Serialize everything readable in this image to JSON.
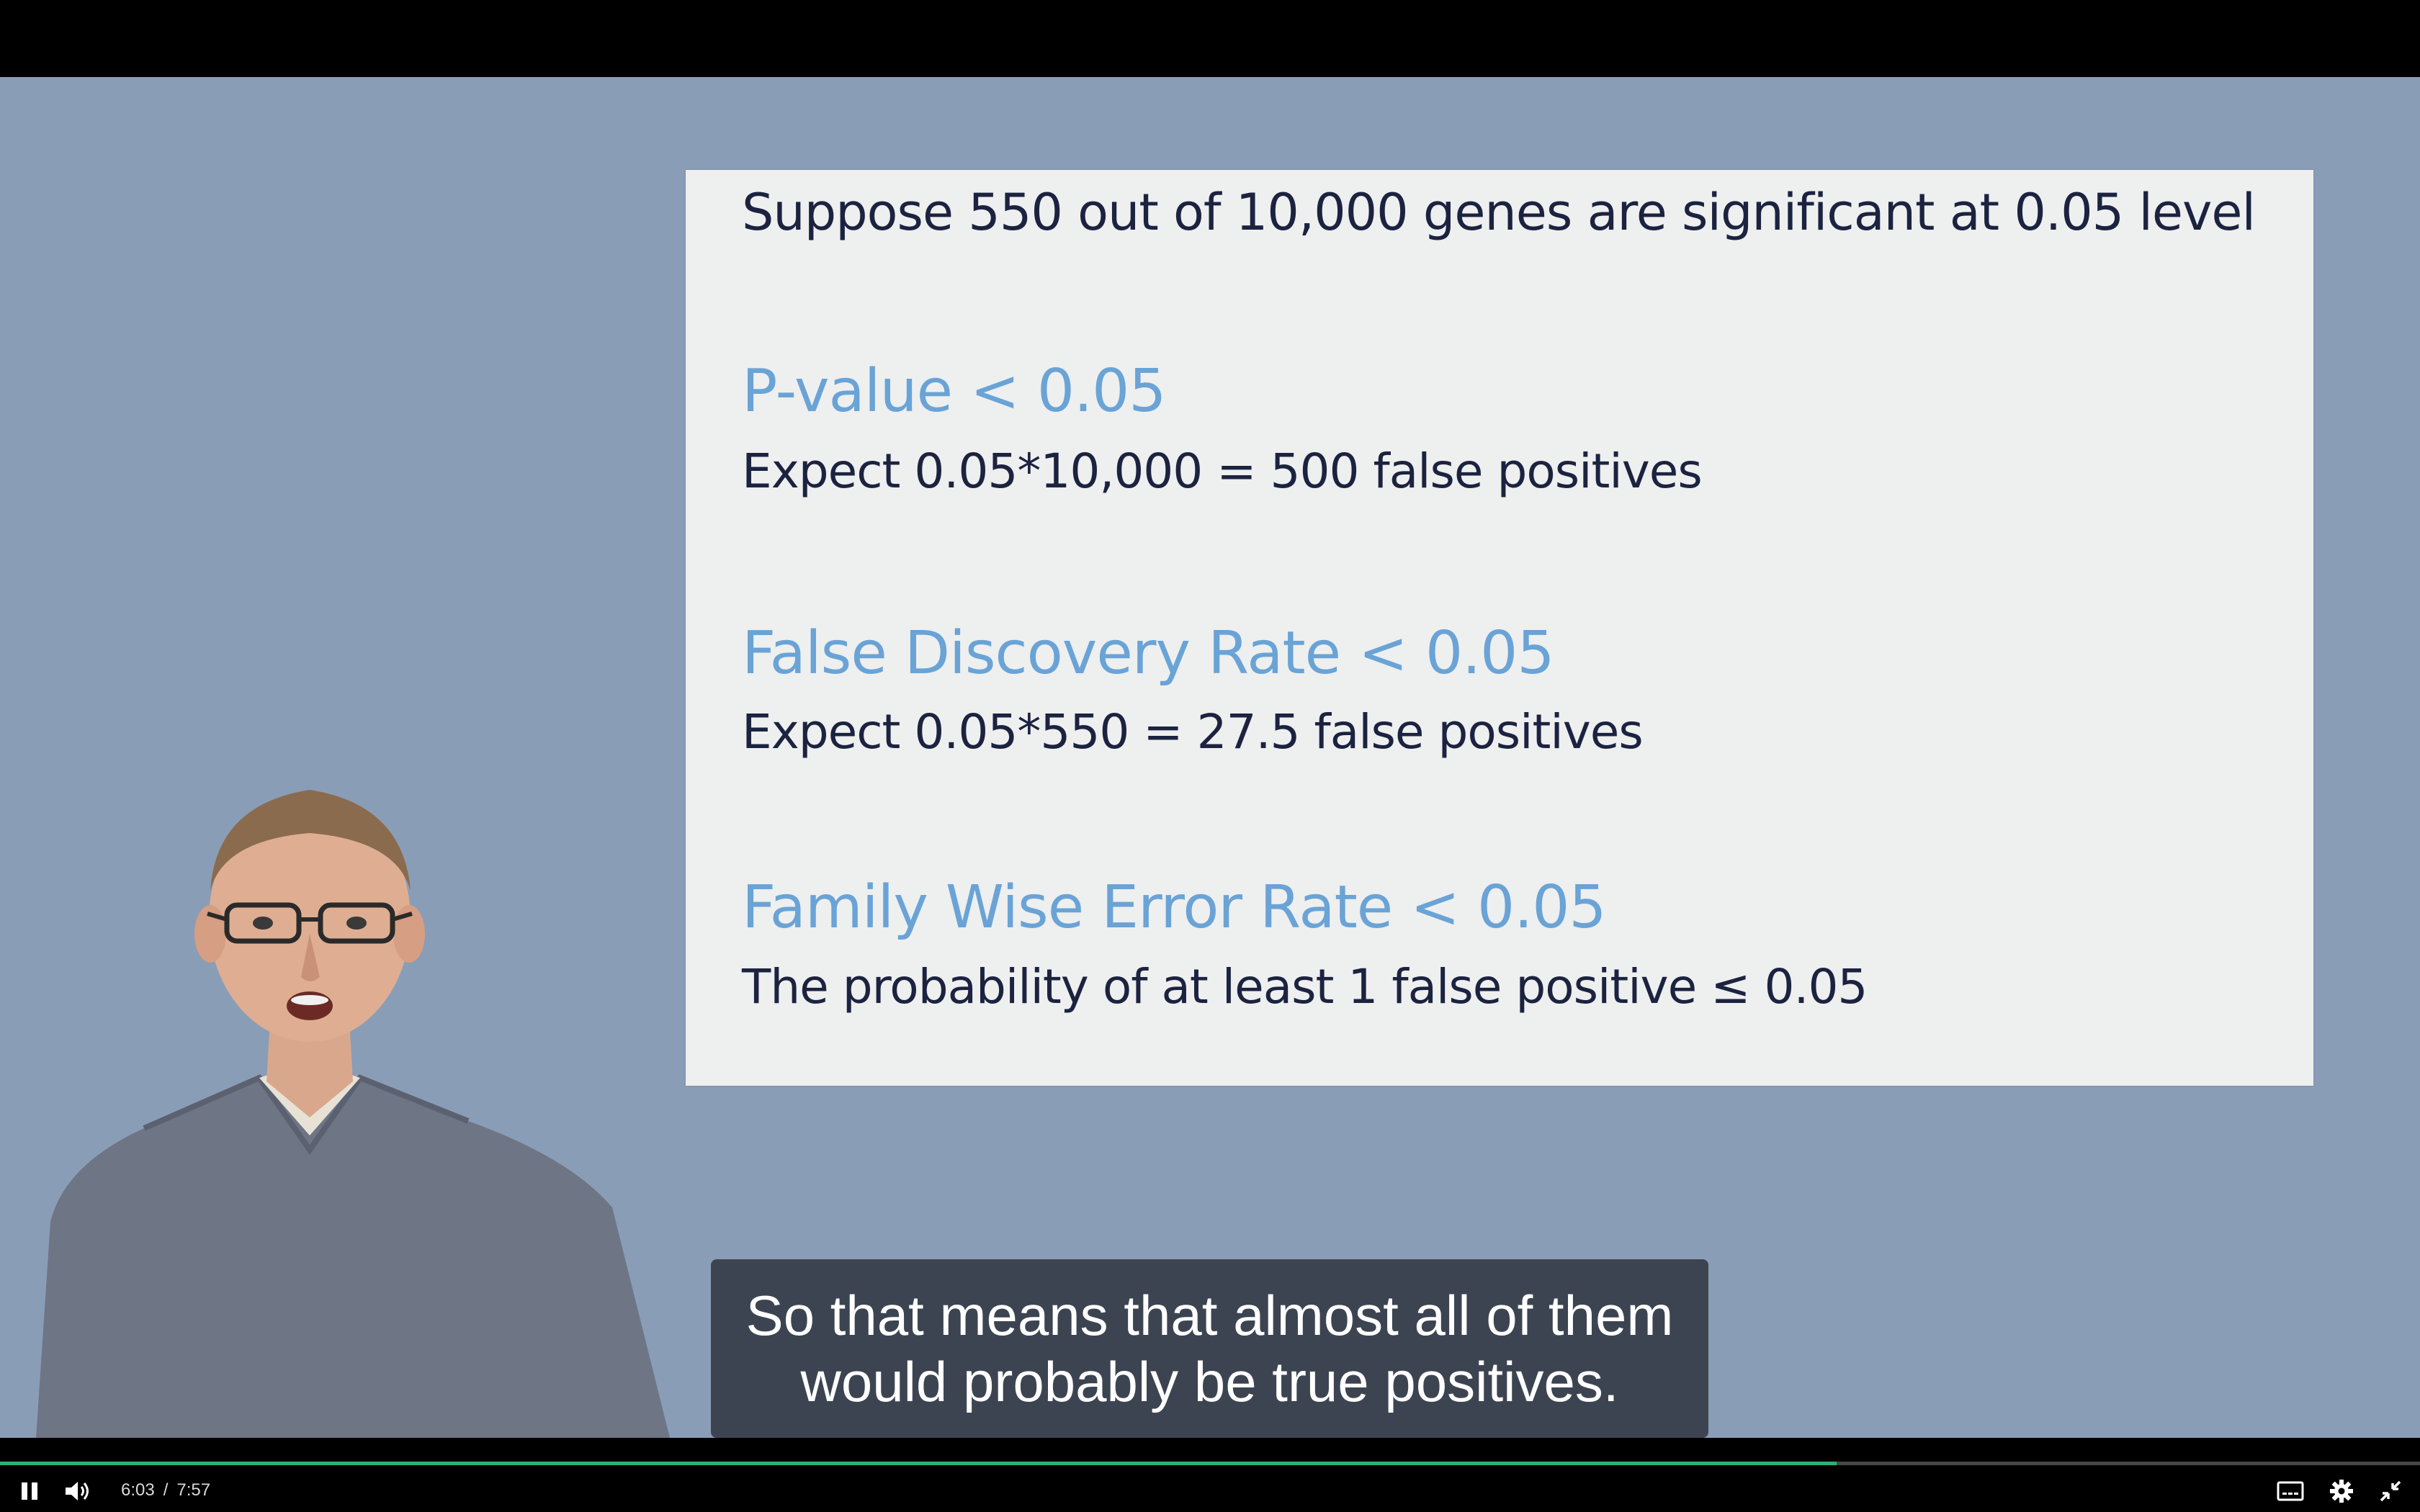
{
  "slide": {
    "heading": "Suppose 550 out of 10,000 genes are significant at 0.05 level",
    "blocks": [
      {
        "title": "P-value < 0.05",
        "text": "Expect 0.05*10,000 = 500 false positives"
      },
      {
        "title": "False Discovery Rate < 0.05",
        "text": "Expect 0.05*550 = 27.5 false positives"
      },
      {
        "title": "Family Wise Error Rate < 0.05",
        "text": "The probability of at least 1 false positive ≤ 0.05"
      }
    ]
  },
  "captions": {
    "line1": "So that means that almost all of them",
    "line2": "would probably be true positives."
  },
  "player": {
    "current_time": "6:03",
    "separator": "/",
    "duration": "7:57",
    "progress_fraction": 0.759,
    "accent_color": "#2fb073",
    "icons": [
      "pause-icon",
      "volume-icon",
      "captions-icon",
      "settings-icon",
      "exit-fullscreen-icon"
    ]
  }
}
